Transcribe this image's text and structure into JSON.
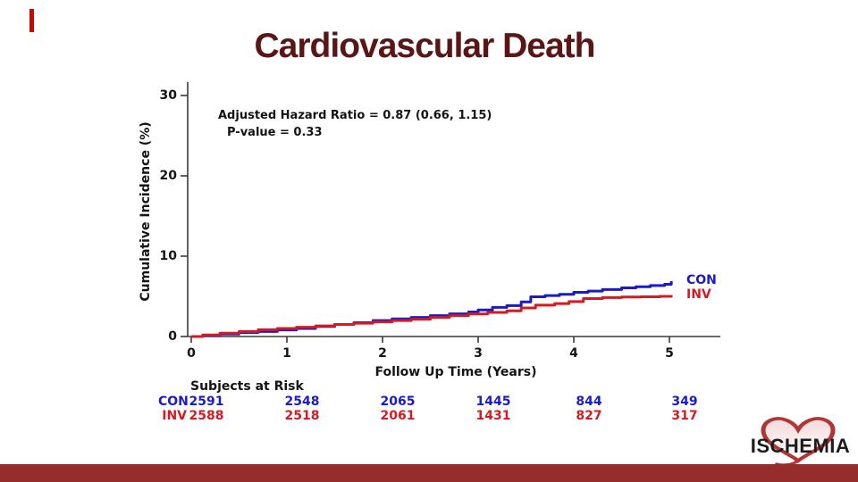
{
  "slide": {
    "title": "Cardiovascular Death",
    "title_color": "#5a1616",
    "bottom_bar_color": "#962d2d"
  },
  "logo": {
    "text": "ISCHEMIA"
  },
  "chart_data": {
    "type": "line",
    "subtype": "kaplan-meier-cumulative-incidence-step",
    "title": "Cardiovascular Death",
    "xlabel": "Follow Up Time (Years)",
    "ylabel": "Cumulative Incidence (%)",
    "xlim": [
      0,
      5.5
    ],
    "ylim": [
      0,
      30
    ],
    "xticks": [
      "0",
      "1",
      "2",
      "3",
      "4",
      "5"
    ],
    "yticks": [
      "0",
      "10",
      "20",
      "30"
    ],
    "grid": false,
    "annotation_line1": "Adjusted Hazard Ratio = 0.87 (0.66, 1.15)",
    "annotation_line2": "P-value = 0.33",
    "series": [
      {
        "name": "CON",
        "color": "#1a1ac8",
        "points": [
          [
            0,
            0
          ],
          [
            0.12,
            0.12
          ],
          [
            0.3,
            0.3
          ],
          [
            0.5,
            0.5
          ],
          [
            0.7,
            0.62
          ],
          [
            0.9,
            0.82
          ],
          [
            1.1,
            1.0
          ],
          [
            1.3,
            1.25
          ],
          [
            1.5,
            1.5
          ],
          [
            1.7,
            1.72
          ],
          [
            1.9,
            1.98
          ],
          [
            2.1,
            2.2
          ],
          [
            2.3,
            2.38
          ],
          [
            2.5,
            2.6
          ],
          [
            2.7,
            2.82
          ],
          [
            2.9,
            3.05
          ],
          [
            3.0,
            3.3
          ],
          [
            3.15,
            3.62
          ],
          [
            3.3,
            3.85
          ],
          [
            3.45,
            4.3
          ],
          [
            3.55,
            4.95
          ],
          [
            3.7,
            5.1
          ],
          [
            3.85,
            5.25
          ],
          [
            4.0,
            5.5
          ],
          [
            4.15,
            5.65
          ],
          [
            4.3,
            5.85
          ],
          [
            4.5,
            6.05
          ],
          [
            4.65,
            6.2
          ],
          [
            4.8,
            6.35
          ],
          [
            4.95,
            6.5
          ],
          [
            5.02,
            6.9
          ]
        ]
      },
      {
        "name": "INV",
        "color": "#d41a22",
        "points": [
          [
            0,
            0
          ],
          [
            0.12,
            0.2
          ],
          [
            0.3,
            0.42
          ],
          [
            0.5,
            0.62
          ],
          [
            0.7,
            0.85
          ],
          [
            0.9,
            1.0
          ],
          [
            1.1,
            1.15
          ],
          [
            1.3,
            1.32
          ],
          [
            1.5,
            1.5
          ],
          [
            1.7,
            1.65
          ],
          [
            1.9,
            1.82
          ],
          [
            2.1,
            1.98
          ],
          [
            2.3,
            2.15
          ],
          [
            2.5,
            2.38
          ],
          [
            2.7,
            2.6
          ],
          [
            2.9,
            2.8
          ],
          [
            3.1,
            3.0
          ],
          [
            3.3,
            3.2
          ],
          [
            3.45,
            3.55
          ],
          [
            3.6,
            3.9
          ],
          [
            3.8,
            4.1
          ],
          [
            3.95,
            4.35
          ],
          [
            4.1,
            4.72
          ],
          [
            4.3,
            4.85
          ],
          [
            4.5,
            4.92
          ],
          [
            4.7,
            4.95
          ],
          [
            4.9,
            5.0
          ],
          [
            5.02,
            5.15
          ]
        ]
      }
    ],
    "legend_position": "right-of-curve-ends",
    "subjects_at_risk": {
      "header": "Subjects at Risk",
      "times": [
        "0",
        "1",
        "2",
        "3",
        "4",
        "5"
      ],
      "rows": [
        {
          "name": "CON",
          "color": "#1a1ac8",
          "counts": [
            "2591",
            "2548",
            "2065",
            "1445",
            "844",
            "349"
          ]
        },
        {
          "name": "INV",
          "color": "#d41a22",
          "counts": [
            "2588",
            "2518",
            "2061",
            "1431",
            "827",
            "317"
          ]
        }
      ]
    }
  }
}
